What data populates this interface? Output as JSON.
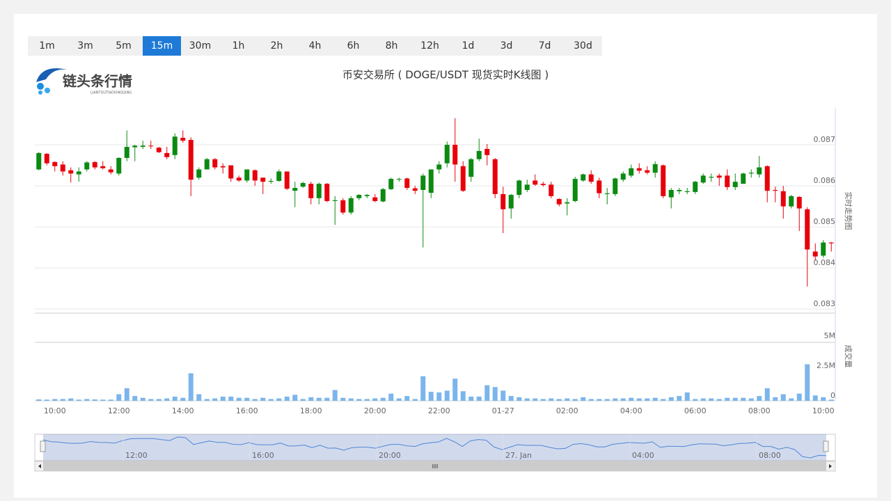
{
  "toolbar": {
    "intervals": [
      "1m",
      "3m",
      "5m",
      "15m",
      "30m",
      "1h",
      "2h",
      "4h",
      "6h",
      "8h",
      "12h",
      "1d",
      "3d",
      "7d",
      "30d"
    ],
    "active": "15m"
  },
  "logo": {
    "name": "链头条行情",
    "subtitle": "LIANTOUTIAOXINGQING"
  },
  "chart_data": {
    "type": "candlestick",
    "title": "币安交易所 ( DOGE/USDT 现货实时K线图 )",
    "categories": [
      null,
      null,
      "10:00",
      null,
      null,
      null,
      null,
      null,
      null,
      null,
      "12:00",
      null,
      null,
      null,
      null,
      null,
      null,
      null,
      "14:00",
      null,
      null,
      null,
      null,
      null,
      null,
      null,
      "16:00",
      null,
      null,
      null,
      null,
      null,
      null,
      null,
      "18:00",
      null,
      null,
      null,
      null,
      null,
      null,
      null,
      "20:00",
      null,
      null,
      null,
      null,
      null,
      null,
      null,
      "22:00",
      null,
      null,
      null,
      null,
      null,
      null,
      null,
      "01-27",
      null,
      null,
      null,
      null,
      null,
      null,
      null,
      "02:00",
      null,
      null,
      null,
      null,
      null,
      null,
      null,
      "04:00",
      null,
      null,
      null,
      null,
      null,
      null,
      null,
      "06:00",
      null,
      null,
      null,
      null,
      null,
      null,
      null,
      "08:00",
      null,
      null,
      null,
      null,
      null,
      null,
      null,
      "10:00",
      null
    ],
    "open": [
      0.0864,
      0.08678,
      0.08658,
      0.08652,
      0.08638,
      0.08628,
      0.0864,
      0.08658,
      0.08648,
      0.0864,
      0.0863,
      0.08668,
      0.08694,
      0.08695,
      0.08698,
      0.08693,
      0.0868,
      0.08675,
      0.08717,
      0.08712,
      0.0862,
      0.0864,
      0.08665,
      0.08648,
      0.0865,
      0.0862,
      0.08613,
      0.08638,
      0.0862,
      0.0861,
      0.08612,
      0.08635,
      0.08588,
      0.08598,
      0.08605,
      0.0857,
      0.08605,
      0.08563,
      0.08565,
      0.08535,
      0.0857,
      0.08575,
      0.08572,
      0.08562,
      0.08592,
      0.08617,
      0.08618,
      0.08594,
      0.0859,
      0.08583,
      0.0864,
      0.08655,
      0.087,
      0.08648,
      0.08622,
      0.08665,
      0.0869,
      0.08665,
      0.0858,
      0.08545,
      0.08578,
      0.0859,
      0.08613,
      0.08605,
      0.08603,
      0.08568,
      0.08557,
      0.08563,
      0.08613,
      0.08628,
      0.08613,
      0.0858,
      0.0858,
      0.08615,
      0.08625,
      0.08643,
      0.08638,
      0.08632,
      0.0865,
      0.08572,
      0.08587,
      0.08585,
      0.08585,
      0.08608,
      0.0862,
      0.08625,
      0.08625,
      0.08597,
      0.08605,
      0.0863,
      0.08628,
      0.08648,
      0.0859,
      0.08587,
      0.0855,
      0.08573,
      0.08543,
      0.0844,
      0.0843,
      0.08462
    ],
    "high": [
      0.08682,
      0.0868,
      0.0866,
      0.0866,
      0.08645,
      0.08645,
      0.0866,
      0.0866,
      0.0866,
      0.08648,
      0.0867,
      0.08735,
      0.087,
      0.0871,
      0.0871,
      0.08695,
      0.08695,
      0.08728,
      0.08735,
      0.08718,
      0.08645,
      0.08668,
      0.08668,
      0.08655,
      0.0865,
      0.08625,
      0.0864,
      0.0864,
      0.0862,
      0.08618,
      0.0864,
      0.08635,
      0.0861,
      0.0861,
      0.0861,
      0.08608,
      0.08607,
      0.08575,
      0.0857,
      0.08575,
      0.0858,
      0.0858,
      0.0858,
      0.08595,
      0.0862,
      0.0862,
      0.0862,
      0.086,
      0.0863,
      0.0864,
      0.0866,
      0.08708,
      0.08765,
      0.0866,
      0.08668,
      0.08715,
      0.08702,
      0.08668,
      0.08598,
      0.0858,
      0.08615,
      0.08615,
      0.08628,
      0.0861,
      0.0861,
      0.0857,
      0.0857,
      0.08622,
      0.0863,
      0.08638,
      0.0862,
      0.08595,
      0.0862,
      0.08635,
      0.08652,
      0.08655,
      0.08648,
      0.0866,
      0.08652,
      0.08595,
      0.08595,
      0.08595,
      0.08612,
      0.0863,
      0.0863,
      0.0863,
      0.0864,
      0.0863,
      0.08632,
      0.0864,
      0.08673,
      0.0865,
      0.08598,
      0.086,
      0.08578,
      0.08575,
      0.08548,
      0.0846,
      0.08468,
      0.08463
    ],
    "low": [
      0.08638,
      0.0865,
      0.08635,
      0.08625,
      0.08608,
      0.0861,
      0.08635,
      0.0864,
      0.0864,
      0.08628,
      0.08625,
      0.0866,
      0.0866,
      0.0869,
      0.0869,
      0.0868,
      0.08665,
      0.08665,
      0.08705,
      0.08575,
      0.08615,
      0.0864,
      0.0864,
      0.0863,
      0.0861,
      0.0861,
      0.08608,
      0.086,
      0.0858,
      0.08605,
      0.0861,
      0.0859,
      0.08548,
      0.08595,
      0.08555,
      0.08555,
      0.0856,
      0.08505,
      0.0853,
      0.0853,
      0.08565,
      0.0857,
      0.0856,
      0.0856,
      0.0859,
      0.0861,
      0.0859,
      0.0858,
      0.0845,
      0.0857,
      0.0863,
      0.08645,
      0.0861,
      0.08585,
      0.0861,
      0.0866,
      0.0865,
      0.0857,
      0.08485,
      0.0852,
      0.0857,
      0.08585,
      0.086,
      0.08598,
      0.0857,
      0.0855,
      0.08528,
      0.0856,
      0.0861,
      0.08605,
      0.0857,
      0.08555,
      0.08575,
      0.0861,
      0.0862,
      0.0863,
      0.08628,
      0.0862,
      0.0857,
      0.08545,
      0.0858,
      0.0858,
      0.0858,
      0.08605,
      0.0861,
      0.086,
      0.0859,
      0.0859,
      0.08605,
      0.0862,
      0.0862,
      0.0856,
      0.0856,
      0.0852,
      0.08545,
      0.0849,
      0.08355,
      0.08418,
      0.08425,
      0.0844
    ],
    "close": [
      0.0868,
      0.08655,
      0.08648,
      0.08635,
      0.0863,
      0.08635,
      0.08657,
      0.08645,
      0.08643,
      0.08633,
      0.08668,
      0.08695,
      0.08698,
      0.08698,
      0.08697,
      0.08682,
      0.0867,
      0.0872,
      0.0871,
      0.08615,
      0.0864,
      0.08665,
      0.08645,
      0.08645,
      0.08618,
      0.08613,
      0.0864,
      0.08613,
      0.0861,
      0.08612,
      0.08635,
      0.08593,
      0.08595,
      0.08607,
      0.0857,
      0.08605,
      0.08563,
      0.08565,
      0.08535,
      0.0857,
      0.08578,
      0.08578,
      0.08563,
      0.08592,
      0.08617,
      0.08617,
      0.08595,
      0.08588,
      0.08625,
      0.0864,
      0.08652,
      0.087,
      0.08652,
      0.08588,
      0.08665,
      0.08685,
      0.08675,
      0.0858,
      0.08543,
      0.08578,
      0.08613,
      0.08603,
      0.08603,
      0.08602,
      0.08575,
      0.08555,
      0.0856,
      0.08617,
      0.08628,
      0.0861,
      0.08582,
      0.08582,
      0.08618,
      0.0863,
      0.08643,
      0.08637,
      0.08632,
      0.08653,
      0.08575,
      0.0859,
      0.0859,
      0.08587,
      0.0861,
      0.08625,
      0.08622,
      0.0862,
      0.08597,
      0.0861,
      0.0863,
      0.08632,
      0.08645,
      0.08588,
      0.08588,
      0.0855,
      0.08575,
      0.08545,
      0.08445,
      0.08428,
      0.08462,
      0.0846
    ],
    "up_color": "#0b8a12",
    "down_color": "#e8000b",
    "ylim": [
      0.0829,
      0.0879
    ],
    "yticks": [
      0.083,
      0.084,
      0.085,
      0.086,
      0.087
    ],
    "grid": true,
    "ylabel": "实时走势图",
    "volume": {
      "color": "#7cb5ec",
      "ylabel": "成交量",
      "ylim": [
        0,
        5000000
      ],
      "yticks": [
        0,
        {
          "value": 2500000,
          "label": "2.5M"
        },
        {
          "value": 5000000,
          "label": "5M"
        }
      ],
      "values": [
        120000,
        100000,
        150000,
        150000,
        200000,
        100000,
        150000,
        120000,
        100000,
        100000,
        550000,
        1050000,
        400000,
        250000,
        150000,
        150000,
        200000,
        350000,
        250000,
        2300000,
        550000,
        150000,
        200000,
        350000,
        350000,
        250000,
        250000,
        150000,
        250000,
        150000,
        200000,
        350000,
        500000,
        150000,
        300000,
        250000,
        250000,
        900000,
        250000,
        200000,
        150000,
        150000,
        200000,
        250000,
        600000,
        200000,
        400000,
        150000,
        2050000,
        750000,
        700000,
        850000,
        1850000,
        800000,
        350000,
        350000,
        1300000,
        1150000,
        850000,
        400000,
        300000,
        200000,
        200000,
        150000,
        200000,
        150000,
        200000,
        150000,
        300000,
        150000,
        150000,
        150000,
        200000,
        200000,
        250000,
        200000,
        200000,
        250000,
        150000,
        300000,
        400000,
        700000,
        150000,
        200000,
        200000,
        150000,
        250000,
        250000,
        250000,
        200000,
        400000,
        1050000,
        300000,
        550000,
        200000,
        600000,
        3050000,
        450000,
        300000,
        100000
      ]
    }
  },
  "navigator": {
    "labels": [
      "12:00",
      "16:00",
      "20:00",
      "27. Jan",
      "04:00",
      "08:00"
    ]
  }
}
